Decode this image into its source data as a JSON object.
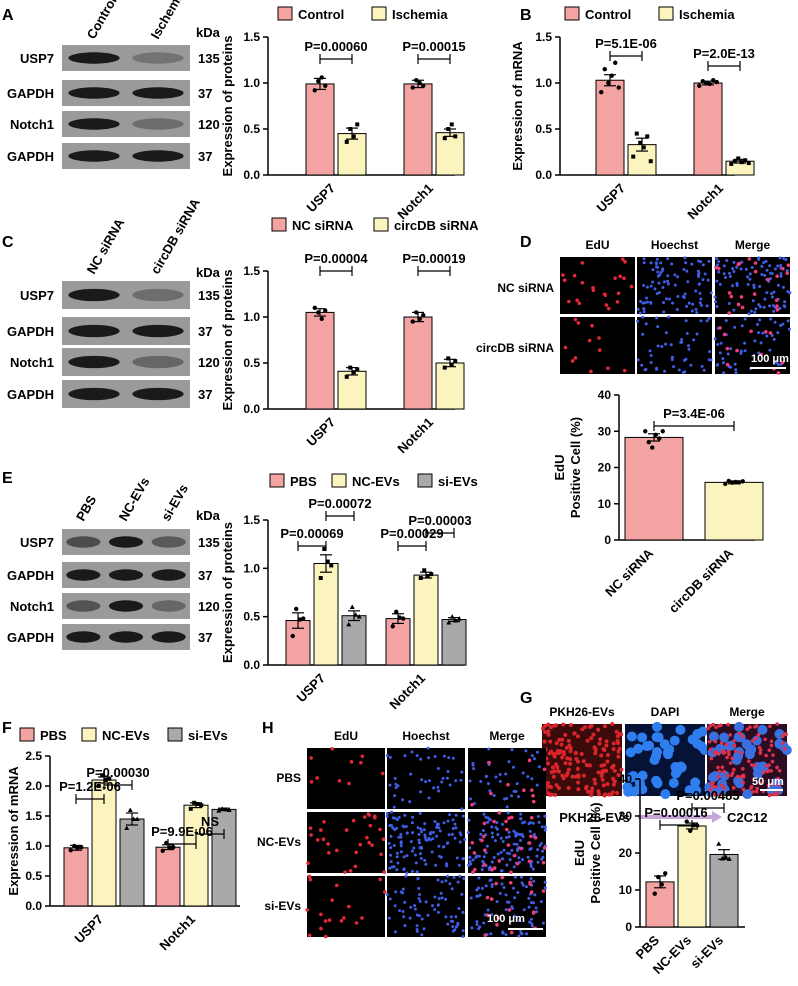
{
  "colors": {
    "control": "#f4a3a3",
    "treat": "#fbf4bf",
    "gray": "#a9a9a9",
    "blotBg": "#9a9a9a",
    "band": "#1a1a1a",
    "arrow": "#c9a4d8"
  },
  "panels": {
    "A": {
      "label": "A",
      "lanes": [
        "Control",
        "Ischemia"
      ],
      "kda": "kDa",
      "rows": [
        {
          "name": "USP7",
          "kd": "135",
          "bands": [
            1,
            0.3
          ]
        },
        {
          "name": "GAPDH",
          "kd": "37",
          "bands": [
            1,
            1
          ]
        },
        {
          "name": "Notch1",
          "kd": "120",
          "bands": [
            1,
            0.35
          ]
        },
        {
          "name": "GAPDH",
          "kd": "37",
          "bands": [
            1,
            1
          ]
        }
      ]
    },
    "B": {
      "label": "B"
    },
    "C": {
      "label": "C",
      "lanes": [
        "NC siRNA",
        "circDB siRNA"
      ],
      "kda": "kDa",
      "rows": [
        {
          "name": "USP7",
          "kd": "135",
          "bands": [
            1,
            0.35
          ]
        },
        {
          "name": "GAPDH",
          "kd": "37",
          "bands": [
            1,
            1
          ]
        },
        {
          "name": "Notch1",
          "kd": "120",
          "bands": [
            1,
            0.4
          ]
        },
        {
          "name": "GAPDH",
          "kd": "37",
          "bands": [
            1,
            1
          ]
        }
      ]
    },
    "D": {
      "label": "D",
      "cols": [
        "EdU",
        "Hoechst",
        "Merge"
      ],
      "rows": [
        "NC siRNA",
        "circDB siRNA"
      ],
      "scale": "100 μm"
    },
    "E": {
      "label": "E",
      "lanes": [
        "PBS",
        "NC-EVs",
        "si-EVs"
      ],
      "kda": "kDa",
      "rows": [
        {
          "name": "USP7",
          "kd": "135",
          "bands": [
            0.6,
            1,
            0.5
          ]
        },
        {
          "name": "GAPDH",
          "kd": "37",
          "bands": [
            1,
            1,
            1
          ]
        },
        {
          "name": "Notch1",
          "kd": "120",
          "bands": [
            0.55,
            1,
            0.4
          ]
        },
        {
          "name": "GAPDH",
          "kd": "37",
          "bands": [
            1,
            1,
            1
          ]
        }
      ]
    },
    "F": {
      "label": "F"
    },
    "G": {
      "label": "G",
      "cols": [
        "PKH26-EVs",
        "DAPI",
        "Merge"
      ],
      "scale": "50 μm",
      "from": "PKH26-EVs",
      "to": "C2C12"
    },
    "H": {
      "label": "H",
      "cols": [
        "EdU",
        "Hoechst",
        "Merge"
      ],
      "rows": [
        "PBS",
        "NC-EVs",
        "si-EVs"
      ],
      "scale": "100 μm"
    }
  },
  "chart_data": [
    {
      "id": "A",
      "type": "bar",
      "ylabel": "Expression of proteins",
      "ylim": [
        0,
        1.5
      ],
      "yticks": [
        "0.0",
        "0.5",
        "1.0",
        "1.5"
      ],
      "categories": [
        "USP7",
        "Notch1"
      ],
      "series": [
        {
          "name": "Control",
          "values": [
            0.99,
            0.99
          ],
          "err": [
            0.06,
            0.04
          ],
          "points": [
            [
              0.92,
              1.02,
              1.06,
              0.97
            ],
            [
              0.95,
              1.03,
              1.0,
              0.97
            ]
          ]
        },
        {
          "name": "Ischemia",
          "values": [
            0.45,
            0.46
          ],
          "err": [
            0.06,
            0.04
          ],
          "points": [
            [
              0.36,
              0.5,
              0.42,
              0.55
            ],
            [
              0.4,
              0.5,
              0.55,
              0.42
            ]
          ]
        }
      ],
      "pvalues": [
        "P=0.00060",
        "P=0.00015"
      ]
    },
    {
      "id": "B",
      "type": "bar",
      "ylabel": "Expression of mRNA",
      "ylim": [
        0,
        1.5
      ],
      "yticks": [
        "0.0",
        "0.5",
        "1.0",
        "1.5"
      ],
      "categories": [
        "USP7",
        "Notch1"
      ],
      "series": [
        {
          "name": "Control",
          "values": [
            1.03,
            1.0
          ],
          "err": [
            0.06,
            0.02
          ],
          "points": [
            [
              0.9,
              1.15,
              1.0,
              1.08,
              1.22,
              0.95
            ],
            [
              0.97,
              1.02,
              1.0,
              0.99,
              1.03,
              1.01
            ]
          ]
        },
        {
          "name": "Ischemia",
          "values": [
            0.33,
            0.15
          ],
          "err": [
            0.07,
            0.02
          ],
          "points": [
            [
              0.2,
              0.45,
              0.35,
              0.3,
              0.42,
              0.15
            ],
            [
              0.12,
              0.15,
              0.18,
              0.14,
              0.16,
              0.13
            ]
          ]
        }
      ],
      "pvalues": [
        "P=5.1E-06",
        "P=2.0E-13"
      ]
    },
    {
      "id": "C",
      "type": "bar",
      "ylabel": "Expression of proteins",
      "ylim": [
        0,
        1.5
      ],
      "yticks": [
        "0.0",
        "0.5",
        "1.0",
        "1.5"
      ],
      "categories": [
        "USP7",
        "Notch1"
      ],
      "series": [
        {
          "name": "NC siRNA",
          "values": [
            1.05,
            1.0
          ],
          "err": [
            0.04,
            0.05
          ],
          "points": [
            [
              1.1,
              1.05,
              0.98,
              1.07
            ],
            [
              0.95,
              1.05,
              0.98,
              1.02
            ]
          ]
        },
        {
          "name": "circDB siRNA",
          "values": [
            0.41,
            0.5
          ],
          "err": [
            0.04,
            0.04
          ],
          "points": [
            [
              0.35,
              0.45,
              0.4,
              0.43
            ],
            [
              0.45,
              0.55,
              0.48,
              0.52
            ]
          ]
        }
      ],
      "pvalues": [
        "P=0.00004",
        "P=0.00019"
      ]
    },
    {
      "id": "D",
      "type": "bar",
      "ylabel": "EdU Positive Cell (%)",
      "ylim": [
        0,
        40
      ],
      "yticks": [
        "0",
        "10",
        "20",
        "30",
        "40"
      ],
      "categories": [
        "NC siRNA",
        "circDB siRNA"
      ],
      "series": [
        {
          "name": "",
          "values": [
            28.3,
            15.9
          ],
          "err": [
            1.0,
            0.4
          ],
          "points": [
            [
              30,
              27,
              25.5,
              29,
              28,
              30
            ],
            [
              15.5,
              16.3,
              15.8,
              16,
              15.9,
              16.2
            ]
          ]
        }
      ],
      "pvalues": [
        "P=3.4E-06"
      ]
    },
    {
      "id": "E",
      "type": "bar",
      "ylabel": "Expression of proteins",
      "ylim": [
        0,
        1.5
      ],
      "yticks": [
        "0.0",
        "0.5",
        "1.0",
        "1.5"
      ],
      "categories": [
        "USP7",
        "Notch1"
      ],
      "series": [
        {
          "name": "PBS",
          "values": [
            0.46,
            0.48
          ],
          "err": [
            0.08,
            0.05
          ],
          "points": [
            [
              0.3,
              0.58,
              0.47,
              0.48
            ],
            [
              0.4,
              0.55,
              0.49,
              0.48
            ]
          ]
        },
        {
          "name": "NC-EVs",
          "values": [
            1.05,
            0.93
          ],
          "err": [
            0.09,
            0.03
          ],
          "points": [
            [
              0.9,
              1.2,
              1.07,
              1.03
            ],
            [
              0.9,
              0.98,
              0.92,
              0.94
            ]
          ]
        },
        {
          "name": "si-EVs",
          "values": [
            0.51,
            0.47
          ],
          "err": [
            0.05,
            0.02
          ],
          "points": [
            [
              0.42,
              0.6,
              0.52,
              0.5
            ],
            [
              0.44,
              0.5,
              0.46,
              0.48
            ]
          ]
        }
      ],
      "pvalues": [
        "P=0.00069",
        "P=0.00072",
        "P=0.00029",
        "P=0.00003"
      ]
    },
    {
      "id": "F",
      "type": "bar",
      "ylabel": "Expression of mRNA",
      "ylim": [
        0,
        2.5
      ],
      "yticks": [
        "0.0",
        "0.5",
        "1.0",
        "1.5",
        "2.0",
        "2.5"
      ],
      "categories": [
        "USP7",
        "Notch1"
      ],
      "series": [
        {
          "name": "PBS",
          "values": [
            0.97,
            0.98
          ],
          "err": [
            0.04,
            0.04
          ],
          "points": [
            [
              0.93,
              1.0,
              0.97,
              0.98
            ],
            [
              0.92,
              1.05,
              0.97,
              0.98
            ]
          ]
        },
        {
          "name": "NC-EVs",
          "values": [
            2.1,
            1.68
          ],
          "err": [
            0.05,
            0.04
          ],
          "points": [
            [
              2.0,
              2.18,
              2.1,
              2.12
            ],
            [
              1.62,
              1.72,
              1.7,
              1.68
            ]
          ]
        },
        {
          "name": "si-EVs",
          "values": [
            1.45,
            1.61
          ],
          "err": [
            0.1,
            0.02
          ],
          "points": [
            [
              1.3,
              1.6,
              1.45,
              1.45
            ],
            [
              1.59,
              1.62,
              1.61,
              1.6
            ]
          ]
        }
      ],
      "pvalues": [
        "P=1.2E-06",
        "P=0.00030",
        "P=9.9E-06",
        "NS"
      ]
    },
    {
      "id": "H",
      "type": "bar",
      "ylabel": "EdU Positive Cell (%)",
      "ylim": [
        0,
        40
      ],
      "yticks": [
        "0",
        "10",
        "20",
        "30",
        "40"
      ],
      "categories": [
        "PBS",
        "NC-EVs",
        "si-EVs"
      ],
      "series": [
        {
          "name": "",
          "values": [
            12.2,
            27.3,
            19.6
          ],
          "err": [
            1.6,
            0.8,
            1.3
          ],
          "points": [
            [
              9,
              13.5,
              11.5,
              14.5
            ],
            [
              28.5,
              26,
              27.5,
              27.4
            ],
            [
              22.5,
              18.5,
              19,
              18.4
            ]
          ]
        }
      ],
      "pvalues": [
        "P=0.00016",
        "P=0.00485"
      ]
    }
  ]
}
